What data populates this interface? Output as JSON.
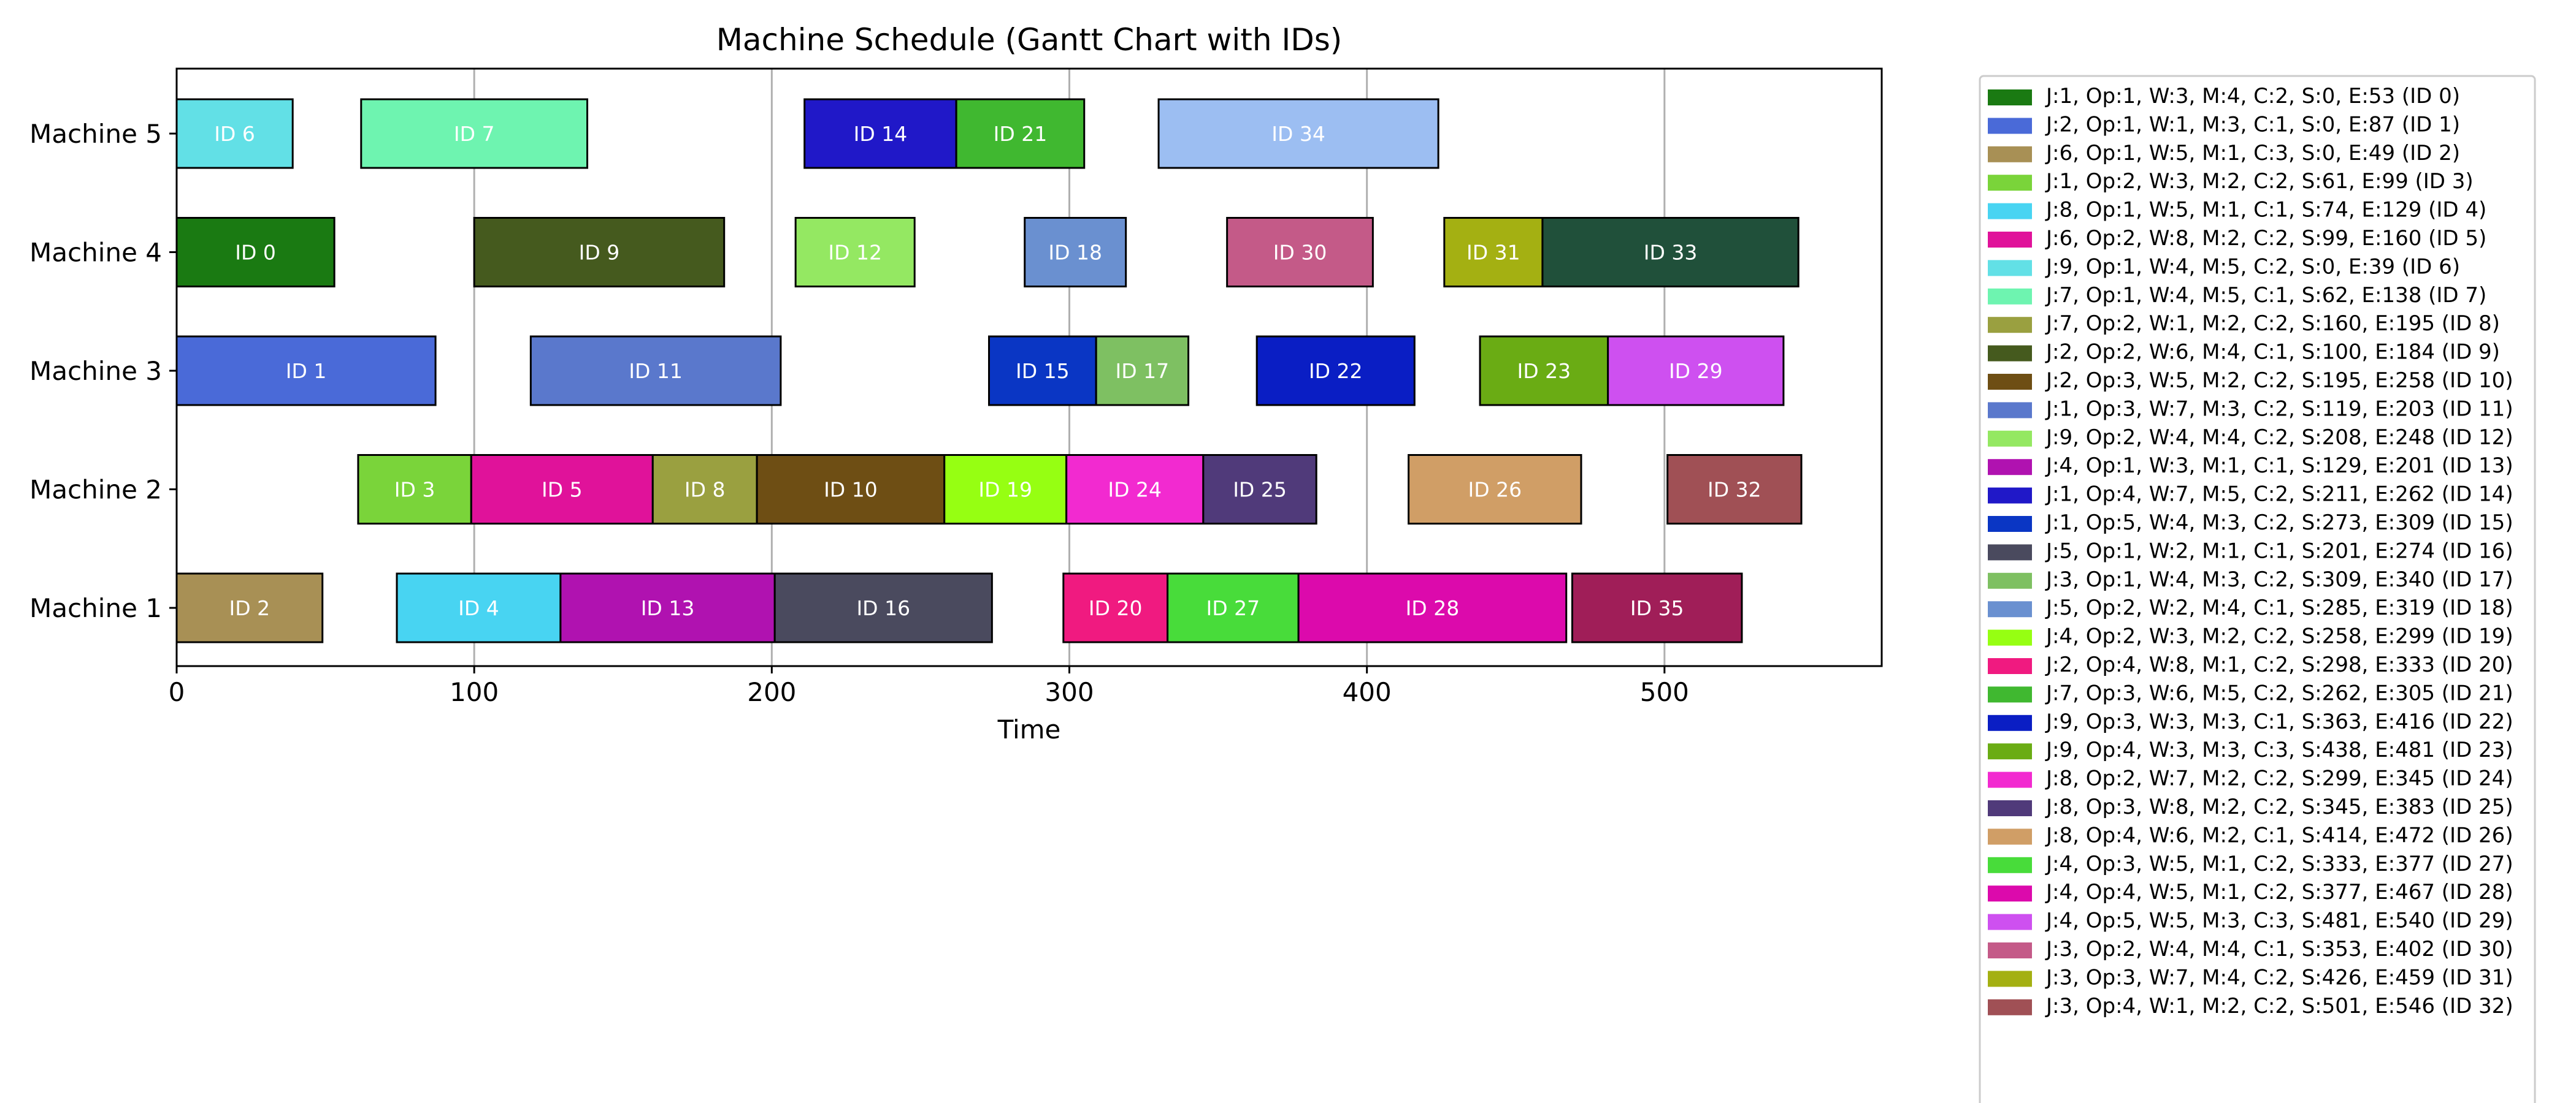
{
  "chart_data": {
    "type": "gantt",
    "title": "Machine Schedule (Gantt Chart with IDs)",
    "xlabel": "Time",
    "ylabel": "",
    "xlim": [
      0,
      573
    ],
    "x_ticks": [
      0,
      100,
      200,
      300,
      400,
      500
    ],
    "grid": "vertical",
    "legend_position": "right, outside plot area",
    "machines": [
      "Machine 1",
      "Machine 2",
      "Machine 3",
      "Machine 4",
      "Machine 5"
    ],
    "tasks": [
      {
        "id": 0,
        "label": "ID 0",
        "job": 1,
        "op": 1,
        "worker": 3,
        "machine": 4,
        "c": 2,
        "start": 0,
        "end": 53,
        "color": "#1a7a12",
        "legend": "J:1, Op:1, W:3, M:4, C:2, S:0, E:53 (ID 0)"
      },
      {
        "id": 1,
        "label": "ID 1",
        "job": 2,
        "op": 1,
        "worker": 1,
        "machine": 3,
        "c": 1,
        "start": 0,
        "end": 87,
        "color": "#4a6ad8",
        "legend": "J:2, Op:1, W:1, M:3, C:1, S:0, E:87 (ID 1)"
      },
      {
        "id": 2,
        "label": "ID 2",
        "job": 6,
        "op": 1,
        "worker": 5,
        "machine": 1,
        "c": 3,
        "start": 0,
        "end": 49,
        "color": "#a89055",
        "legend": "J:6, Op:1, W:5, M:1, C:3, S:0, E:49 (ID 2)"
      },
      {
        "id": 3,
        "label": "ID 3",
        "job": 1,
        "op": 2,
        "worker": 3,
        "machine": 2,
        "c": 2,
        "start": 61,
        "end": 99,
        "color": "#7ad43a",
        "legend": "J:1, Op:2, W:3, M:2, C:2, S:61, E:99 (ID 3)"
      },
      {
        "id": 4,
        "label": "ID 4",
        "job": 8,
        "op": 1,
        "worker": 5,
        "machine": 1,
        "c": 1,
        "start": 74,
        "end": 129,
        "color": "#48d4f2",
        "legend": "J:8, Op:1, W:5, M:1, C:1, S:74, E:129 (ID 4)"
      },
      {
        "id": 5,
        "label": "ID 5",
        "job": 6,
        "op": 2,
        "worker": 8,
        "machine": 2,
        "c": 2,
        "start": 99,
        "end": 160,
        "color": "#e0129a",
        "legend": "J:6, Op:2, W:8, M:2, C:2, S:99, E:160 (ID 5)"
      },
      {
        "id": 6,
        "label": "ID 6",
        "job": 9,
        "op": 1,
        "worker": 4,
        "machine": 5,
        "c": 2,
        "start": 0,
        "end": 39,
        "color": "#62e0e6",
        "legend": "J:9, Op:1, W:4, M:5, C:2, S:0, E:39 (ID 6)"
      },
      {
        "id": 7,
        "label": "ID 7",
        "job": 7,
        "op": 1,
        "worker": 4,
        "machine": 5,
        "c": 1,
        "start": 62,
        "end": 138,
        "color": "#6ef4b0",
        "legend": "J:7, Op:1, W:4, M:5, C:1, S:62, E:138 (ID 7)"
      },
      {
        "id": 8,
        "label": "ID 8",
        "job": 7,
        "op": 2,
        "worker": 1,
        "machine": 2,
        "c": 2,
        "start": 160,
        "end": 195,
        "color": "#9aa040",
        "legend": "J:7, Op:2, W:1, M:2, C:2, S:160, E:195 (ID 8)"
      },
      {
        "id": 9,
        "label": "ID 9",
        "job": 2,
        "op": 2,
        "worker": 6,
        "machine": 4,
        "c": 1,
        "start": 100,
        "end": 184,
        "color": "#455a1e",
        "legend": "J:2, Op:2, W:6, M:4, C:1, S:100, E:184 (ID 9)"
      },
      {
        "id": 10,
        "label": "ID 10",
        "job": 2,
        "op": 3,
        "worker": 5,
        "machine": 2,
        "c": 2,
        "start": 195,
        "end": 258,
        "color": "#6e4e14",
        "legend": "J:2, Op:3, W:5, M:2, C:2, S:195, E:258 (ID 10)"
      },
      {
        "id": 11,
        "label": "ID 11",
        "job": 1,
        "op": 3,
        "worker": 7,
        "machine": 3,
        "c": 2,
        "start": 119,
        "end": 203,
        "color": "#5a78cc",
        "legend": "J:1, Op:3, W:7, M:3, C:2, S:119, E:203 (ID 11)"
      },
      {
        "id": 12,
        "label": "ID 12",
        "job": 9,
        "op": 2,
        "worker": 4,
        "machine": 4,
        "c": 2,
        "start": 208,
        "end": 248,
        "color": "#94e862",
        "legend": "J:9, Op:2, W:4, M:4, C:2, S:208, E:248 (ID 12)"
      },
      {
        "id": 13,
        "label": "ID 13",
        "job": 4,
        "op": 1,
        "worker": 3,
        "machine": 1,
        "c": 1,
        "start": 129,
        "end": 201,
        "color": "#b012b0",
        "legend": "J:4, Op:1, W:3, M:1, C:1, S:129, E:201 (ID 13)"
      },
      {
        "id": 14,
        "label": "ID 14",
        "job": 1,
        "op": 4,
        "worker": 7,
        "machine": 5,
        "c": 2,
        "start": 211,
        "end": 262,
        "color": "#2018c8",
        "legend": "J:1, Op:4, W:7, M:5, C:2, S:211, E:262 (ID 14)"
      },
      {
        "id": 15,
        "label": "ID 15",
        "job": 1,
        "op": 5,
        "worker": 4,
        "machine": 3,
        "c": 2,
        "start": 273,
        "end": 309,
        "color": "#0a36c4",
        "legend": "J:1, Op:5, W:4, M:3, C:2, S:273, E:309 (ID 15)"
      },
      {
        "id": 16,
        "label": "ID 16",
        "job": 5,
        "op": 1,
        "worker": 2,
        "machine": 1,
        "c": 1,
        "start": 201,
        "end": 274,
        "color": "#4a4a5e",
        "legend": "J:5, Op:1, W:2, M:1, C:1, S:201, E:274 (ID 16)"
      },
      {
        "id": 17,
        "label": "ID 17",
        "job": 3,
        "op": 1,
        "worker": 4,
        "machine": 3,
        "c": 2,
        "start": 309,
        "end": 340,
        "color": "#7ec062",
        "legend": "J:3, Op:1, W:4, M:3, C:2, S:309, E:340 (ID 17)"
      },
      {
        "id": 18,
        "label": "ID 18",
        "job": 5,
        "op": 2,
        "worker": 2,
        "machine": 4,
        "c": 1,
        "start": 285,
        "end": 319,
        "color": "#6a90d0",
        "legend": "J:5, Op:2, W:2, M:4, C:1, S:285, E:319 (ID 18)"
      },
      {
        "id": 19,
        "label": "ID 19",
        "job": 4,
        "op": 2,
        "worker": 3,
        "machine": 2,
        "c": 2,
        "start": 258,
        "end": 299,
        "color": "#96ff12",
        "legend": "J:4, Op:2, W:3, M:2, C:2, S:258, E:299 (ID 19)"
      },
      {
        "id": 20,
        "label": "ID 20",
        "job": 2,
        "op": 4,
        "worker": 8,
        "machine": 1,
        "c": 2,
        "start": 298,
        "end": 333,
        "color": "#f01a80",
        "legend": "J:2, Op:4, W:8, M:1, C:2, S:298, E:333 (ID 20)"
      },
      {
        "id": 21,
        "label": "ID 21",
        "job": 7,
        "op": 3,
        "worker": 6,
        "machine": 5,
        "c": 2,
        "start": 262,
        "end": 305,
        "color": "#40b830",
        "legend": "J:7, Op:3, W:6, M:5, C:2, S:262, E:305 (ID 21)"
      },
      {
        "id": 22,
        "label": "ID 22",
        "job": 9,
        "op": 3,
        "worker": 3,
        "machine": 3,
        "c": 1,
        "start": 363,
        "end": 416,
        "color": "#0a1ec4",
        "legend": "J:9, Op:3, W:3, M:3, C:1, S:363, E:416 (ID 22)"
      },
      {
        "id": 23,
        "label": "ID 23",
        "job": 9,
        "op": 4,
        "worker": 3,
        "machine": 3,
        "c": 3,
        "start": 438,
        "end": 481,
        "color": "#6aac14",
        "legend": "J:9, Op:4, W:3, M:3, C:3, S:438, E:481 (ID 23)"
      },
      {
        "id": 24,
        "label": "ID 24",
        "job": 8,
        "op": 2,
        "worker": 7,
        "machine": 2,
        "c": 2,
        "start": 299,
        "end": 345,
        "color": "#f22ad0",
        "legend": "J:8, Op:2, W:7, M:2, C:2, S:299, E:345 (ID 24)"
      },
      {
        "id": 25,
        "label": "ID 25",
        "job": 8,
        "op": 3,
        "worker": 8,
        "machine": 2,
        "c": 2,
        "start": 345,
        "end": 383,
        "color": "#503a7a",
        "legend": "J:8, Op:3, W:8, M:2, C:2, S:345, E:383 (ID 25)"
      },
      {
        "id": 26,
        "label": "ID 26",
        "job": 8,
        "op": 4,
        "worker": 6,
        "machine": 2,
        "c": 1,
        "start": 414,
        "end": 472,
        "color": "#d09e66",
        "legend": "J:8, Op:4, W:6, M:2, C:1, S:414, E:472 (ID 26)"
      },
      {
        "id": 27,
        "label": "ID 27",
        "job": 4,
        "op": 3,
        "worker": 5,
        "machine": 1,
        "c": 2,
        "start": 333,
        "end": 377,
        "color": "#48dc3a",
        "legend": "J:4, Op:3, W:5, M:1, C:2, S:333, E:377 (ID 27)"
      },
      {
        "id": 28,
        "label": "ID 28",
        "job": 4,
        "op": 4,
        "worker": 5,
        "machine": 1,
        "c": 2,
        "start": 377,
        "end": 467,
        "color": "#dc0aac",
        "legend": "J:4, Op:4, W:5, M:1, C:2, S:377, E:467 (ID 28)"
      },
      {
        "id": 29,
        "label": "ID 29",
        "job": 4,
        "op": 5,
        "worker": 5,
        "machine": 3,
        "c": 3,
        "start": 481,
        "end": 540,
        "color": "#ce50f0",
        "legend": "J:4, Op:5, W:5, M:3, C:3, S:481, E:540 (ID 29)"
      },
      {
        "id": 30,
        "label": "ID 30",
        "job": 3,
        "op": 2,
        "worker": 4,
        "machine": 4,
        "c": 1,
        "start": 353,
        "end": 402,
        "color": "#c45a88",
        "legend": "J:3, Op:2, W:4, M:4, C:1, S:353, E:402 (ID 30)"
      },
      {
        "id": 31,
        "label": "ID 31",
        "job": 3,
        "op": 3,
        "worker": 7,
        "machine": 4,
        "c": 2,
        "start": 426,
        "end": 459,
        "color": "#a4b012",
        "legend": "J:3, Op:3, W:7, M:4, C:2, S:426, E:459 (ID 31)"
      },
      {
        "id": 32,
        "label": "ID 32",
        "job": 3,
        "op": 4,
        "worker": 1,
        "machine": 2,
        "c": 2,
        "start": 501,
        "end": 546,
        "color": "#a05055",
        "legend": "J:3, Op:4, W:1, M:2, C:2, S:501, E:546 (ID 32)"
      },
      {
        "id": 33,
        "label": "ID 33",
        "job": null,
        "op": null,
        "worker": null,
        "machine": 4,
        "c": null,
        "start": 459,
        "end": 545,
        "color": "#20503a",
        "legend": ""
      },
      {
        "id": 34,
        "label": "ID 34",
        "job": null,
        "op": null,
        "worker": null,
        "machine": 5,
        "c": null,
        "start": 330,
        "end": 424,
        "color": "#9cbef2",
        "legend": ""
      },
      {
        "id": 35,
        "label": "ID 35",
        "job": null,
        "op": null,
        "worker": null,
        "machine": 1,
        "c": null,
        "start": 469,
        "end": 526,
        "color": "#a01e58",
        "legend": ""
      }
    ]
  }
}
